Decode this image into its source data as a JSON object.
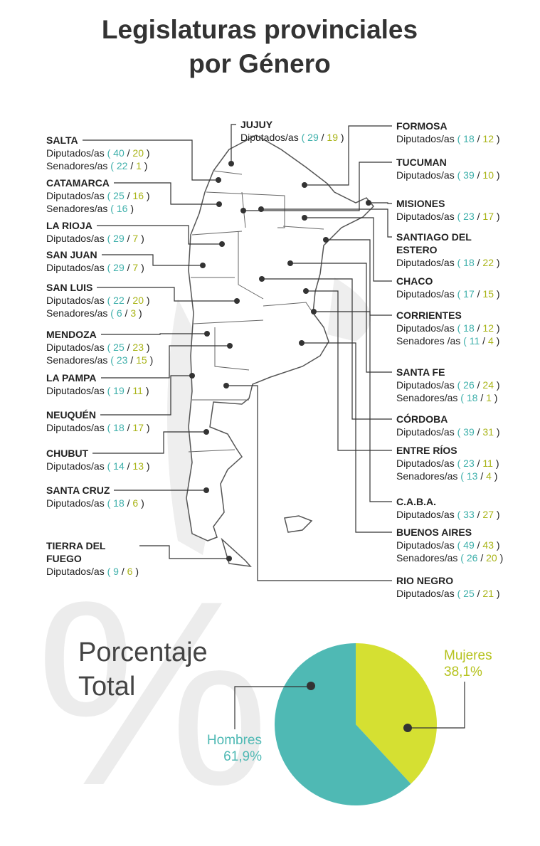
{
  "title": "Legislaturas provinciales por Género",
  "provinces": [
    {
      "name": "SALTA",
      "rows": [
        {
          "label": "Diputados/as",
          "values": [
            40,
            20
          ]
        },
        {
          "label": "Senadores/as",
          "values": [
            22,
            1
          ]
        }
      ]
    },
    {
      "name": "CATAMARCA",
      "rows": [
        {
          "label": "Diputados/as",
          "values": [
            25,
            16
          ]
        },
        {
          "label": "Senadores/as",
          "values": [
            16
          ]
        }
      ]
    },
    {
      "name": "LA RIOJA",
      "rows": [
        {
          "label": "Diputados/as",
          "values": [
            29,
            7
          ]
        }
      ]
    },
    {
      "name": "SAN JUAN",
      "rows": [
        {
          "label": "Diputados/as",
          "values": [
            29,
            7
          ]
        }
      ]
    },
    {
      "name": "SAN LUIS",
      "rows": [
        {
          "label": "Diputados/as",
          "values": [
            22,
            20
          ]
        },
        {
          "label": "Senadores/as",
          "values": [
            6,
            3
          ]
        }
      ]
    },
    {
      "name": "MENDOZA",
      "rows": [
        {
          "label": "Diputados/as",
          "values": [
            25,
            23
          ]
        },
        {
          "label": "Senadores/as",
          "values": [
            23,
            15
          ]
        }
      ]
    },
    {
      "name": "LA PAMPA",
      "rows": [
        {
          "label": "Diputados/as",
          "values": [
            19,
            11
          ]
        }
      ]
    },
    {
      "name": "NEUQUÉN",
      "rows": [
        {
          "label": "Diputados/as",
          "values": [
            18,
            17
          ]
        }
      ]
    },
    {
      "name": "CHUBUT",
      "rows": [
        {
          "label": "Diputados/as",
          "values": [
            14,
            13
          ]
        }
      ]
    },
    {
      "name": "SANTA CRUZ",
      "rows": [
        {
          "label": "Diputados/as",
          "values": [
            18,
            6
          ]
        }
      ]
    },
    {
      "name": "TIERRA DEL FUEGO",
      "rows": [
        {
          "label": "Diputados/as",
          "values": [
            9,
            6
          ]
        }
      ]
    },
    {
      "name": "JUJUY",
      "rows": [
        {
          "label": "Diputados/as",
          "values": [
            29,
            19
          ]
        }
      ]
    },
    {
      "name": "FORMOSA",
      "rows": [
        {
          "label": "Diputados/as",
          "values": [
            18,
            12
          ]
        }
      ]
    },
    {
      "name": "TUCUMAN",
      "rows": [
        {
          "label": "Diputados/as",
          "values": [
            39,
            10
          ]
        }
      ]
    },
    {
      "name": "MISIONES",
      "rows": [
        {
          "label": "Diputados/as",
          "values": [
            23,
            17
          ]
        }
      ]
    },
    {
      "name": "SANTIAGO DEL ESTERO",
      "rows": [
        {
          "label": "Diputados/as",
          "values": [
            18,
            22
          ]
        }
      ]
    },
    {
      "name": "CHACO",
      "rows": [
        {
          "label": "Diputados/as",
          "values": [
            17,
            15
          ]
        }
      ]
    },
    {
      "name": "CORRIENTES",
      "rows": [
        {
          "label": "Diputados/as",
          "values": [
            18,
            12
          ]
        },
        {
          "label": "Senadores /as",
          "values": [
            11,
            4
          ]
        }
      ]
    },
    {
      "name": "SANTA FE",
      "rows": [
        {
          "label": "Diputados/as",
          "values": [
            26,
            24
          ]
        },
        {
          "label": "Senadores/as",
          "values": [
            18,
            1
          ]
        }
      ]
    },
    {
      "name": "CÓRDOBA",
      "rows": [
        {
          "label": "Diputados/as",
          "values": [
            39,
            31
          ]
        }
      ]
    },
    {
      "name": "ENTRE RÍOS",
      "rows": [
        {
          "label": "Diputados/as",
          "values": [
            23,
            11
          ]
        },
        {
          "label": "Senadores/as",
          "values": [
            13,
            4
          ]
        }
      ]
    },
    {
      "name": "C.A.B.A.",
      "rows": [
        {
          "label": "Diputados/as",
          "values": [
            33,
            27
          ]
        }
      ]
    },
    {
      "name": "BUENOS AIRES",
      "rows": [
        {
          "label": "Diputados/as",
          "values": [
            49,
            43
          ]
        },
        {
          "label": "Senadores/as",
          "values": [
            26,
            20
          ]
        }
      ]
    },
    {
      "name": "RIO NEGRO",
      "rows": [
        {
          "label": "Diputados/as",
          "values": [
            25,
            21
          ]
        }
      ]
    }
  ],
  "watermark": "%",
  "chart_data": {
    "type": "pie",
    "title": "Porcentaje Total",
    "categories": [
      "Hombres",
      "Mujeres"
    ],
    "values": [
      61.9,
      38.1
    ],
    "value_labels": [
      "61,9%",
      "38,1%"
    ],
    "colors": [
      "#4fb9b4",
      "#d5e032"
    ]
  }
}
